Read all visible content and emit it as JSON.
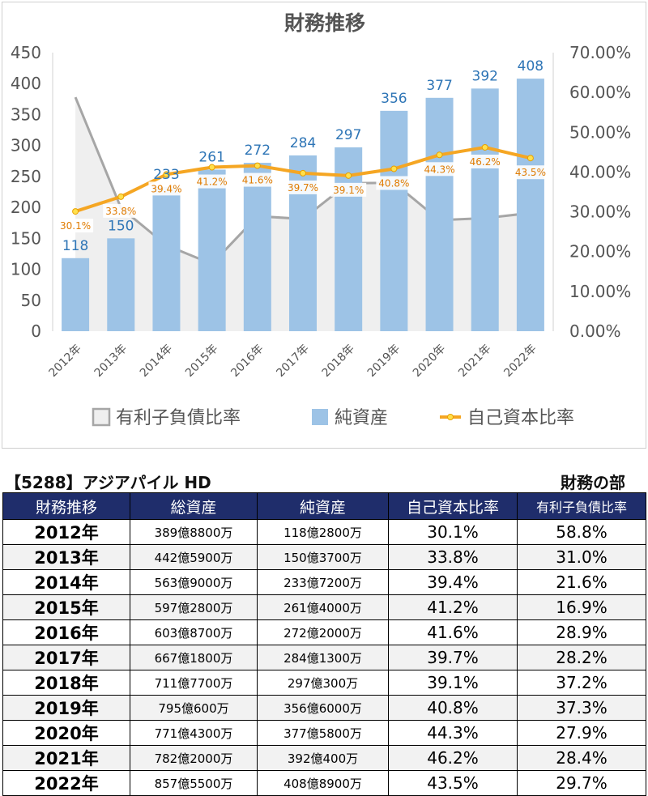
{
  "chart_data": {
    "type": "bar",
    "title": "財務推移",
    "categories": [
      "2012年",
      "2013年",
      "2014年",
      "2015年",
      "2016年",
      "2017年",
      "2018年",
      "2019年",
      "2020年",
      "2021年",
      "2022年"
    ],
    "y_left": {
      "min": 0,
      "max": 450,
      "ticks": [
        "0",
        "50",
        "100",
        "150",
        "200",
        "250",
        "300",
        "350",
        "400",
        "450"
      ]
    },
    "y_right": {
      "min": 0,
      "max": 70,
      "ticks": [
        "0.00%",
        "10.00%",
        "20.00%",
        "30.00%",
        "40.00%",
        "50.00%",
        "60.00%",
        "70.00%"
      ]
    },
    "grid": false,
    "legend_position": "bottom",
    "series": [
      {
        "name": "有利子負債比率",
        "kind": "area",
        "axis": "right",
        "color": "#a6a6a6",
        "values": [
          58.8,
          31.0,
          21.6,
          16.9,
          28.9,
          28.2,
          37.2,
          37.3,
          27.9,
          28.4,
          29.7
        ]
      },
      {
        "name": "純資産",
        "kind": "bar",
        "axis": "left",
        "color": "#9dc3e6",
        "values": [
          118,
          150,
          233,
          261,
          272,
          284,
          297,
          356,
          377,
          392,
          408
        ],
        "labels": [
          "118",
          "150",
          "233",
          "261",
          "272",
          "284",
          "297",
          "356",
          "377",
          "392",
          "408"
        ]
      },
      {
        "name": "自己資本比率",
        "kind": "line",
        "axis": "right",
        "color": "#f5a623",
        "values": [
          30.1,
          33.8,
          39.4,
          41.2,
          41.6,
          39.7,
          39.1,
          40.8,
          44.3,
          46.2,
          43.5
        ],
        "labels": [
          "30.1%",
          "33.8%",
          "39.4%",
          "41.2%",
          "41.6%",
          "39.7%",
          "39.1%",
          "40.8%",
          "44.3%",
          "46.2%",
          "43.5%"
        ]
      }
    ]
  },
  "table": {
    "caption": "【5288】アジアパイル HD",
    "section": "財務の部",
    "headers": [
      "財務推移",
      "総資産",
      "純資産",
      "自己資本比率",
      "有利子負債比率"
    ],
    "rows": [
      [
        "2012年",
        "389億8800万",
        "118億2800万",
        "30.1%",
        "58.8%"
      ],
      [
        "2013年",
        "442億5900万",
        "150億3700万",
        "33.8%",
        "31.0%"
      ],
      [
        "2014年",
        "563億9000万",
        "233億7200万",
        "39.4%",
        "21.6%"
      ],
      [
        "2015年",
        "597億2800万",
        "261億4000万",
        "41.2%",
        "16.9%"
      ],
      [
        "2016年",
        "603億8700万",
        "272億2000万",
        "41.6%",
        "28.9%"
      ],
      [
        "2017年",
        "667億1800万",
        "284億1300万",
        "39.7%",
        "28.2%"
      ],
      [
        "2018年",
        "711億7700万",
        "297億300万",
        "39.1%",
        "37.2%"
      ],
      [
        "2019年",
        "795億600万",
        "356億6000万",
        "40.8%",
        "37.3%"
      ],
      [
        "2020年",
        "771億4300万",
        "377億5800万",
        "44.3%",
        "27.9%"
      ],
      [
        "2021年",
        "782億2000万",
        "392億400万",
        "46.2%",
        "28.4%"
      ],
      [
        "2022年",
        "857億5500万",
        "408億8900万",
        "43.5%",
        "29.7%"
      ]
    ]
  }
}
